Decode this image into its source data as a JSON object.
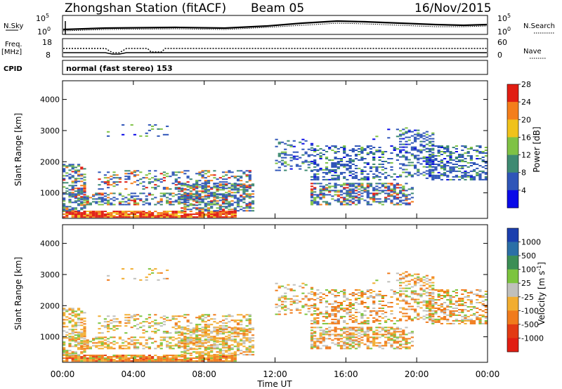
{
  "header": {
    "station": "Zhongshan Station (fitACF)",
    "beam": "Beam 05",
    "date": "16/Nov/2015"
  },
  "top_panels": {
    "nsky_label": "N.Sky",
    "nsky_ticks": [
      "10^5",
      "10^0"
    ],
    "nsearch_ticks": [
      "10^5",
      "10^0"
    ],
    "nsearch_label": "N.Search",
    "freq_label": "Freq.",
    "freq_unit": "[MHz]",
    "freq_ticks": [
      "18",
      "8"
    ],
    "nave_ticks": [
      "60",
      "0"
    ],
    "nave_label": "Nave",
    "cpid_label": "CPID",
    "cpid_value": "normal (fast stereo) 153"
  },
  "chart_data": [
    {
      "type": "heatmap",
      "name": "power",
      "ylabel": "Slant Range [km]",
      "xlabel": "Time UT",
      "x_ticks": [
        "00:00",
        "04:00",
        "08:00",
        "12:00",
        "16:00",
        "20:00",
        "00:00"
      ],
      "x_range_hours": [
        0,
        24
      ],
      "y_ticks": [
        1000,
        2000,
        3000,
        4000
      ],
      "ylim": [
        180,
        4600
      ],
      "colorbar": {
        "label": "Power [dB]",
        "tick_labels": [
          "4",
          "8",
          "12",
          "16",
          "20",
          "24",
          "28"
        ],
        "colors": [
          "#0a0ae8",
          "#2f55b8",
          "#3e8a72",
          "#7fc245",
          "#f0c21b",
          "#f47e1b",
          "#e11d12"
        ]
      }
    },
    {
      "type": "heatmap",
      "name": "velocity",
      "ylabel": "Slant Range [km]",
      "xlabel": "Time UT",
      "x_ticks": [
        "00:00",
        "04:00",
        "08:00",
        "12:00",
        "16:00",
        "20:00",
        "00:00"
      ],
      "x_range_hours": [
        0,
        24
      ],
      "y_ticks": [
        1000,
        2000,
        3000,
        4000
      ],
      "ylim": [
        180,
        4600
      ],
      "colorbar": {
        "label": "Velocity [m s^-1]",
        "tick_labels": [
          "1000",
          "500",
          "100",
          "25",
          "-25",
          "-100",
          "-500",
          "-1000"
        ],
        "colors": [
          "#1b3fae",
          "#2b6fa6",
          "#3b8e55",
          "#7cc43e",
          "#c0c0bc",
          "#f2ad30",
          "#f07b1c",
          "#e23a13",
          "#e11d12"
        ]
      }
    }
  ]
}
